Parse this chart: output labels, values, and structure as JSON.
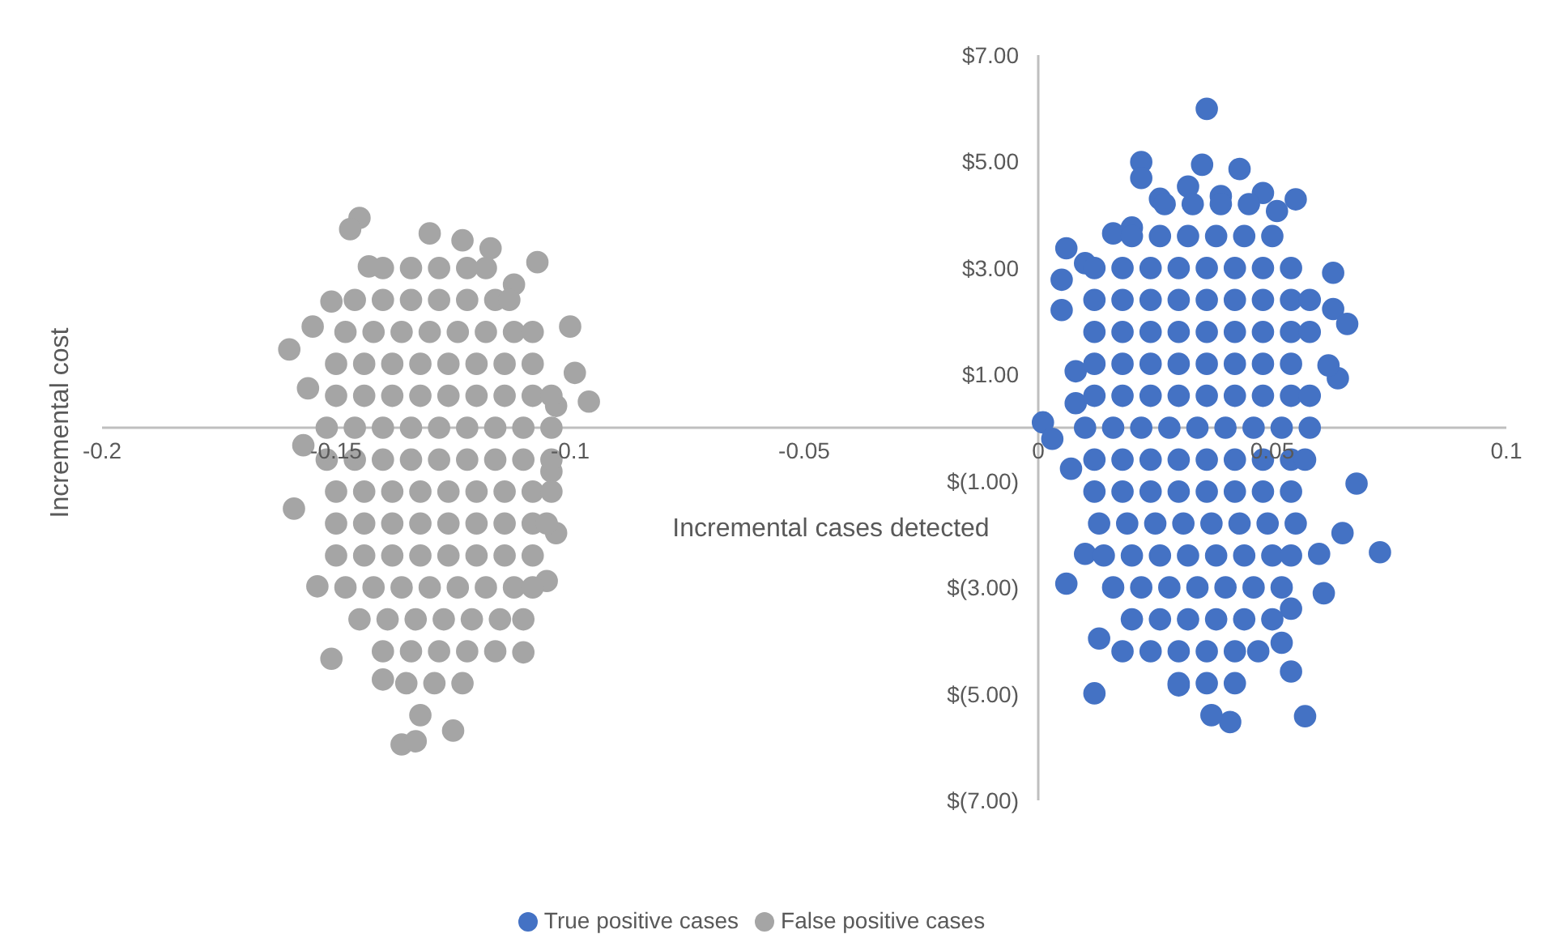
{
  "chart_data": {
    "type": "scatter",
    "xlabel": "Incremental cases detected",
    "ylabel": "Incremental cost",
    "xlim": [
      -0.2,
      0.1
    ],
    "xticks": [
      -0.2,
      -0.15,
      -0.1,
      -0.05,
      0,
      0.05,
      0.1
    ],
    "ylim": [
      -7,
      7
    ],
    "yticks": [
      {
        "value": -7,
        "label": "$(7.00)"
      },
      {
        "value": -5,
        "label": "$(5.00)"
      },
      {
        "value": -3,
        "label": "$(3.00)"
      },
      {
        "value": -1,
        "label": "$(1.00)"
      },
      {
        "value": 1,
        "label": "$1.00"
      },
      {
        "value": 3,
        "label": "$3.00"
      },
      {
        "value": 5,
        "label": "$5.00"
      },
      {
        "value": 7,
        "label": "$7.00"
      }
    ],
    "grid": false,
    "legend": "bottom",
    "marker": "circle",
    "series": [
      {
        "name": "True positive cases",
        "color": "#4472c4",
        "x": [
          0.036,
          0.022,
          0.022,
          0.035,
          0.043,
          0.055,
          0.048,
          0.051,
          0.026,
          0.032,
          0.039,
          0.016,
          0.02,
          0.006,
          0.005,
          0.005,
          0.01,
          0.063,
          0.063,
          0.066,
          0.008,
          0.064,
          0.062,
          0.001,
          0.003,
          0.008,
          0.068,
          0.007,
          0.065,
          0.073,
          0.006,
          0.061,
          0.054,
          0.013,
          0.018,
          0.054,
          0.012,
          0.057,
          0.041,
          0.037,
          0.052,
          0.06,
          0.01,
          0.03,
          0.027,
          0.033,
          0.039,
          0.045,
          0.02,
          0.026,
          0.032,
          0.038,
          0.044,
          0.05,
          0.012,
          0.018,
          0.024,
          0.03,
          0.036,
          0.042,
          0.048,
          0.054,
          0.012,
          0.018,
          0.024,
          0.03,
          0.036,
          0.042,
          0.048,
          0.054,
          0.058,
          0.012,
          0.018,
          0.024,
          0.03,
          0.036,
          0.042,
          0.048,
          0.054,
          0.058,
          0.012,
          0.018,
          0.024,
          0.03,
          0.036,
          0.042,
          0.048,
          0.054,
          0.012,
          0.018,
          0.024,
          0.03,
          0.036,
          0.042,
          0.048,
          0.054,
          0.058,
          0.01,
          0.016,
          0.022,
          0.028,
          0.034,
          0.04,
          0.046,
          0.052,
          0.058,
          0.012,
          0.018,
          0.024,
          0.03,
          0.036,
          0.042,
          0.048,
          0.054,
          0.057,
          0.012,
          0.018,
          0.024,
          0.03,
          0.036,
          0.042,
          0.048,
          0.054,
          0.013,
          0.019,
          0.025,
          0.031,
          0.037,
          0.043,
          0.049,
          0.055,
          0.014,
          0.02,
          0.026,
          0.032,
          0.038,
          0.044,
          0.05,
          0.054,
          0.016,
          0.022,
          0.028,
          0.034,
          0.04,
          0.046,
          0.052,
          0.02,
          0.026,
          0.032,
          0.038,
          0.044,
          0.05,
          0.024,
          0.03,
          0.036,
          0.042,
          0.047,
          0.03,
          0.036,
          0.042
        ],
        "values": [
          5.99,
          4.99,
          4.69,
          4.94,
          4.86,
          4.29,
          4.41,
          4.07,
          4.3,
          4.53,
          4.35,
          3.65,
          3.76,
          3.37,
          2.78,
          2.21,
          3.09,
          2.91,
          2.23,
          1.95,
          1.06,
          0.93,
          1.17,
          0.1,
          -0.21,
          0.46,
          -1.05,
          -0.77,
          -1.98,
          -2.34,
          -2.93,
          -3.11,
          -3.4,
          -3.96,
          -4.2,
          -4.58,
          -4.99,
          -5.42,
          -5.53,
          -5.4,
          -4.04,
          -2.37,
          -2.37,
          -4.84,
          4.2,
          4.2,
          4.2,
          4.2,
          3.6,
          3.6,
          3.6,
          3.6,
          3.6,
          3.6,
          3,
          3,
          3,
          3,
          3,
          3,
          3,
          3,
          2.4,
          2.4,
          2.4,
          2.4,
          2.4,
          2.4,
          2.4,
          2.4,
          2.4,
          1.8,
          1.8,
          1.8,
          1.8,
          1.8,
          1.8,
          1.8,
          1.8,
          1.8,
          1.2,
          1.2,
          1.2,
          1.2,
          1.2,
          1.2,
          1.2,
          1.2,
          0.6,
          0.6,
          0.6,
          0.6,
          0.6,
          0.6,
          0.6,
          0.6,
          0.6,
          0,
          0,
          0,
          0,
          0,
          0,
          0,
          0,
          0,
          -0.6,
          -0.6,
          -0.6,
          -0.6,
          -0.6,
          -0.6,
          -0.6,
          -0.6,
          -0.6,
          -1.2,
          -1.2,
          -1.2,
          -1.2,
          -1.2,
          -1.2,
          -1.2,
          -1.2,
          -1.8,
          -1.8,
          -1.8,
          -1.8,
          -1.8,
          -1.8,
          -1.8,
          -1.8,
          -2.4,
          -2.4,
          -2.4,
          -2.4,
          -2.4,
          -2.4,
          -2.4,
          -2.4,
          -3,
          -3,
          -3,
          -3,
          -3,
          -3,
          -3,
          -3.6,
          -3.6,
          -3.6,
          -3.6,
          -3.6,
          -3.6,
          -4.2,
          -4.2,
          -4.2,
          -4.2,
          -4.2,
          -4.8,
          -4.8,
          -4.8
        ]
      },
      {
        "name": "False positive cases",
        "color": "#a5a5a5",
        "x": [
          -0.145,
          -0.147,
          -0.16,
          -0.155,
          -0.156,
          -0.157,
          -0.159,
          -0.154,
          -0.151,
          -0.14,
          -0.136,
          -0.133,
          -0.125,
          -0.132,
          -0.107,
          -0.117,
          -0.112,
          -0.1,
          -0.096,
          -0.099,
          -0.103,
          -0.105,
          -0.11,
          -0.13,
          -0.123,
          -0.143,
          -0.151,
          -0.103,
          -0.104,
          -0.14,
          -0.134,
          -0.128,
          -0.122,
          -0.118,
          -0.146,
          -0.14,
          -0.134,
          -0.128,
          -0.122,
          -0.116,
          -0.113,
          -0.148,
          -0.142,
          -0.136,
          -0.13,
          -0.124,
          -0.118,
          -0.112,
          -0.108,
          -0.15,
          -0.144,
          -0.138,
          -0.132,
          -0.126,
          -0.12,
          -0.114,
          -0.108,
          -0.15,
          -0.144,
          -0.138,
          -0.132,
          -0.126,
          -0.12,
          -0.114,
          -0.108,
          -0.104,
          -0.152,
          -0.146,
          -0.14,
          -0.134,
          -0.128,
          -0.122,
          -0.116,
          -0.11,
          -0.104,
          -0.152,
          -0.146,
          -0.14,
          -0.134,
          -0.128,
          -0.122,
          -0.116,
          -0.11,
          -0.104,
          -0.15,
          -0.144,
          -0.138,
          -0.132,
          -0.126,
          -0.12,
          -0.114,
          -0.108,
          -0.104,
          -0.15,
          -0.144,
          -0.138,
          -0.132,
          -0.126,
          -0.12,
          -0.114,
          -0.108,
          -0.105,
          -0.15,
          -0.144,
          -0.138,
          -0.132,
          -0.126,
          -0.12,
          -0.114,
          -0.108,
          -0.148,
          -0.142,
          -0.136,
          -0.13,
          -0.124,
          -0.118,
          -0.112,
          -0.108,
          -0.145,
          -0.139,
          -0.133,
          -0.127,
          -0.121,
          -0.115,
          -0.11,
          -0.14,
          -0.134,
          -0.128,
          -0.122,
          -0.116,
          -0.135,
          -0.129,
          -0.123
        ],
        "values": [
          3.94,
          3.73,
          1.47,
          1.9,
          0.74,
          -0.33,
          -1.52,
          -2.98,
          -4.34,
          -4.73,
          -5.95,
          -5.89,
          -5.69,
          -5.4,
          3.11,
          3.37,
          2.69,
          1.9,
          0.49,
          1.03,
          -1.98,
          -2.88,
          -4.22,
          3.65,
          3.52,
          3.03,
          2.37,
          0.41,
          -0.82,
          3,
          3,
          3,
          3,
          3,
          2.4,
          2.4,
          2.4,
          2.4,
          2.4,
          2.4,
          2.4,
          1.8,
          1.8,
          1.8,
          1.8,
          1.8,
          1.8,
          1.8,
          1.8,
          1.2,
          1.2,
          1.2,
          1.2,
          1.2,
          1.2,
          1.2,
          1.2,
          0.6,
          0.6,
          0.6,
          0.6,
          0.6,
          0.6,
          0.6,
          0.6,
          0.6,
          0,
          0,
          0,
          0,
          0,
          0,
          0,
          0,
          0,
          -0.6,
          -0.6,
          -0.6,
          -0.6,
          -0.6,
          -0.6,
          -0.6,
          -0.6,
          -0.6,
          -1.2,
          -1.2,
          -1.2,
          -1.2,
          -1.2,
          -1.2,
          -1.2,
          -1.2,
          -1.2,
          -1.8,
          -1.8,
          -1.8,
          -1.8,
          -1.8,
          -1.8,
          -1.8,
          -1.8,
          -1.8,
          -2.4,
          -2.4,
          -2.4,
          -2.4,
          -2.4,
          -2.4,
          -2.4,
          -2.4,
          -3,
          -3,
          -3,
          -3,
          -3,
          -3,
          -3,
          -3,
          -3.6,
          -3.6,
          -3.6,
          -3.6,
          -3.6,
          -3.6,
          -3.6,
          -4.2,
          -4.2,
          -4.2,
          -4.2,
          -4.2,
          -4.8,
          -4.8,
          -4.8
        ]
      }
    ]
  }
}
